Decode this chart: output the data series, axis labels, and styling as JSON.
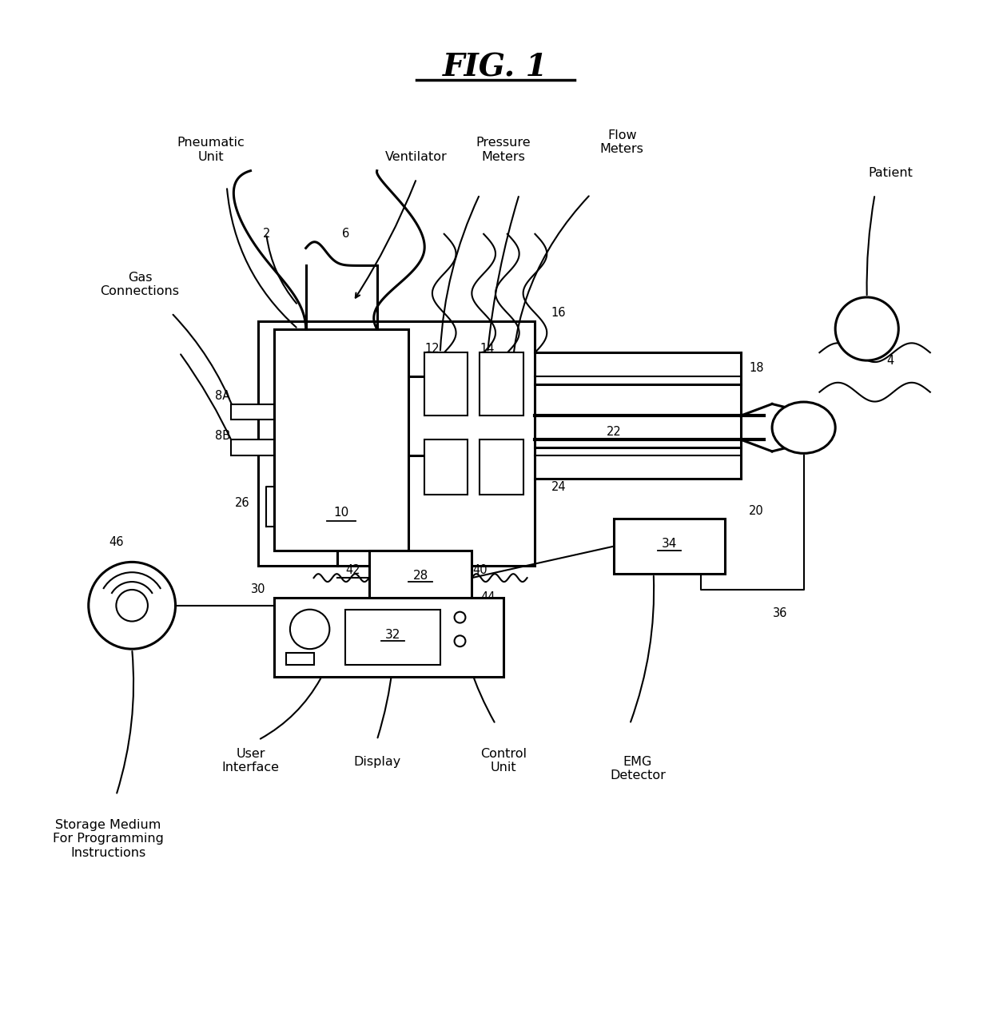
{
  "title": "FIG. 1",
  "bg_color": "#ffffff",
  "fg_color": "#000000",
  "fig_width": 12.4,
  "fig_height": 12.89,
  "labels": {
    "ventilator": "Ventilator",
    "pneumatic_unit": "Pneumatic\nUnit",
    "pressure_meters": "Pressure\nMeters",
    "flow_meters": "Flow\nMeters",
    "patient": "Patient",
    "gas_connections": "Gas\nConnections",
    "user_interface": "User\nInterface",
    "display": "Display",
    "control_unit": "Control\nUnit",
    "emg_detector": "EMG\nDetector",
    "storage_medium": "Storage Medium\nFor Programming\nInstructions"
  }
}
